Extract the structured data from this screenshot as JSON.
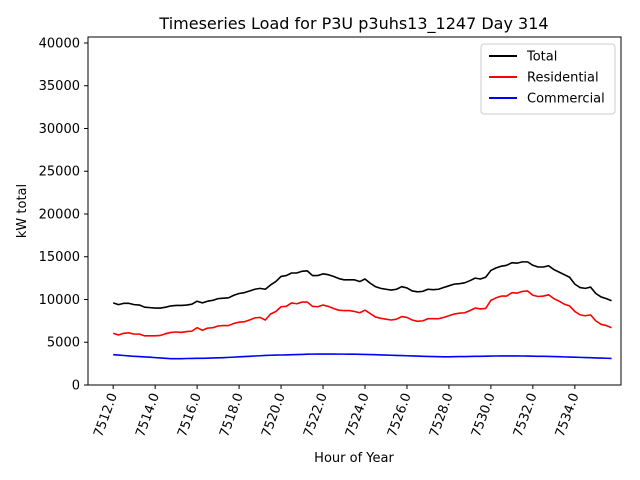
{
  "chart_data": {
    "type": "line",
    "title": "Timeseries Load for P3U p3uhs13_1247  Day 314",
    "xlabel": "Hour of Year",
    "ylabel": "kW total",
    "xlim": [
      7510.8,
      7536.2
    ],
    "ylim": [
      0,
      40700
    ],
    "x_ticks": [
      7512,
      7514,
      7516,
      7518,
      7520,
      7522,
      7524,
      7526,
      7528,
      7530,
      7532,
      7534
    ],
    "x_tick_labels": [
      "7512.0",
      "7514.0",
      "7516.0",
      "7518.0",
      "7520.0",
      "7522.0",
      "7524.0",
      "7526.0",
      "7528.0",
      "7530.0",
      "7532.0",
      "7534.0"
    ],
    "y_ticks": [
      0,
      5000,
      10000,
      15000,
      20000,
      25000,
      30000,
      35000,
      40000
    ],
    "y_tick_labels": [
      "0",
      "5000",
      "10000",
      "15000",
      "20000",
      "25000",
      "30000",
      "35000",
      "40000"
    ],
    "grid": false,
    "legend_position": "top-right",
    "x": [
      7512.0,
      7512.25,
      7512.5,
      7512.75,
      7513.0,
      7513.25,
      7513.5,
      7513.75,
      7514.0,
      7514.25,
      7514.5,
      7514.75,
      7515.0,
      7515.25,
      7515.5,
      7515.75,
      7516.0,
      7516.25,
      7516.5,
      7516.75,
      7517.0,
      7517.25,
      7517.5,
      7517.75,
      7518.0,
      7518.25,
      7518.5,
      7518.75,
      7519.0,
      7519.25,
      7519.5,
      7519.75,
      7520.0,
      7520.25,
      7520.5,
      7520.75,
      7521.0,
      7521.25,
      7521.5,
      7521.75,
      7522.0,
      7522.25,
      7522.5,
      7522.75,
      7523.0,
      7523.25,
      7523.5,
      7523.75,
      7524.0,
      7524.25,
      7524.5,
      7524.75,
      7525.0,
      7525.25,
      7525.5,
      7525.75,
      7526.0,
      7526.25,
      7526.5,
      7526.75,
      7527.0,
      7527.25,
      7527.5,
      7527.75,
      7528.0,
      7528.25,
      7528.5,
      7528.75,
      7529.0,
      7529.25,
      7529.5,
      7529.75,
      7530.0,
      7530.25,
      7530.5,
      7530.75,
      7531.0,
      7531.25,
      7531.5,
      7531.75,
      7532.0,
      7532.25,
      7532.5,
      7532.75,
      7533.0,
      7533.25,
      7533.5,
      7533.75,
      7534.0,
      7534.25,
      7534.5,
      7534.75,
      7535.0,
      7535.25,
      7535.5,
      7535.75
    ],
    "series": [
      {
        "name": "Total",
        "color": "#000000",
        "values": [
          9600,
          9400,
          9550,
          9550,
          9400,
          9350,
          9100,
          9050,
          9000,
          9000,
          9100,
          9250,
          9300,
          9300,
          9350,
          9450,
          9800,
          9600,
          9800,
          9900,
          10100,
          10150,
          10200,
          10500,
          10700,
          10800,
          11000,
          11200,
          11300,
          11200,
          11700,
          12100,
          12700,
          12800,
          13100,
          13100,
          13300,
          13350,
          12800,
          12800,
          13000,
          12900,
          12700,
          12450,
          12300,
          12300,
          12300,
          12100,
          12400,
          11900,
          11500,
          11300,
          11200,
          11100,
          11200,
          11500,
          11350,
          11000,
          10900,
          10950,
          11200,
          11150,
          11200,
          11400,
          11600,
          11800,
          11850,
          11950,
          12200,
          12500,
          12400,
          12600,
          13400,
          13700,
          13900,
          14000,
          14300,
          14250,
          14400,
          14400,
          14000,
          13800,
          13800,
          13950,
          13500,
          13200,
          12900,
          12600,
          11800,
          11400,
          11300,
          11450,
          10700,
          10300,
          10100,
          9850
        ]
      },
      {
        "name": "Residential",
        "color": "#ff0000",
        "values": [
          6050,
          5850,
          6050,
          6100,
          5950,
          5950,
          5750,
          5750,
          5750,
          5800,
          6000,
          6150,
          6200,
          6150,
          6250,
          6300,
          6700,
          6400,
          6650,
          6700,
          6900,
          6950,
          6950,
          7200,
          7350,
          7400,
          7600,
          7850,
          7900,
          7600,
          8300,
          8600,
          9150,
          9200,
          9600,
          9500,
          9700,
          9700,
          9200,
          9150,
          9350,
          9200,
          8950,
          8750,
          8700,
          8700,
          8600,
          8450,
          8750,
          8350,
          7950,
          7800,
          7700,
          7600,
          7700,
          8000,
          7900,
          7600,
          7450,
          7500,
          7750,
          7750,
          7750,
          7900,
          8100,
          8300,
          8400,
          8450,
          8700,
          9000,
          8900,
          8950,
          9900,
          10200,
          10400,
          10400,
          10800,
          10750,
          10950,
          11000,
          10500,
          10350,
          10400,
          10550,
          10100,
          9800,
          9450,
          9250,
          8600,
          8200,
          8100,
          8200,
          7500,
          7100,
          6950,
          6700
        ]
      },
      {
        "name": "Commercial",
        "color": "#0000ff",
        "values": [
          3550,
          3500,
          3450,
          3400,
          3350,
          3320,
          3280,
          3250,
          3200,
          3160,
          3120,
          3080,
          3080,
          3080,
          3100,
          3110,
          3120,
          3120,
          3140,
          3160,
          3180,
          3200,
          3230,
          3260,
          3300,
          3330,
          3360,
          3390,
          3420,
          3460,
          3480,
          3500,
          3510,
          3520,
          3540,
          3560,
          3580,
          3600,
          3610,
          3620,
          3620,
          3620,
          3620,
          3610,
          3610,
          3600,
          3600,
          3590,
          3580,
          3560,
          3540,
          3520,
          3500,
          3480,
          3460,
          3440,
          3420,
          3400,
          3380,
          3360,
          3340,
          3320,
          3310,
          3300,
          3300,
          3310,
          3320,
          3330,
          3340,
          3350,
          3360,
          3370,
          3380,
          3390,
          3400,
          3400,
          3400,
          3400,
          3390,
          3380,
          3370,
          3360,
          3350,
          3340,
          3330,
          3310,
          3290,
          3270,
          3250,
          3230,
          3210,
          3190,
          3170,
          3150,
          3130,
          3110
        ]
      }
    ]
  }
}
